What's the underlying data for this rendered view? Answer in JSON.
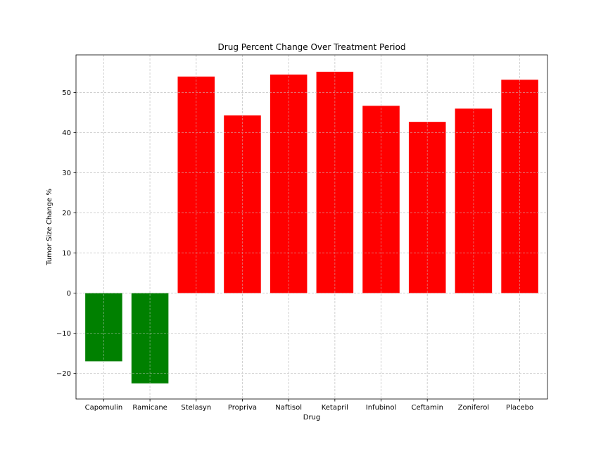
{
  "chart_data": {
    "type": "bar",
    "title": "Drug Percent Change Over Treatment Period",
    "xlabel": "Drug",
    "ylabel": "Tumor Size Change %",
    "categories": [
      "Capomulin",
      "Ramicane",
      "Stelasyn",
      "Propriva",
      "Naftisol",
      "Ketapril",
      "Infubinol",
      "Ceftamin",
      "Zoniferol",
      "Placebo"
    ],
    "values": [
      -17.0,
      -22.5,
      54.0,
      44.3,
      54.5,
      55.2,
      46.7,
      42.7,
      46.0,
      53.2
    ],
    "ylim": [
      -26.4,
      59.4
    ],
    "yticks": [
      -20,
      -10,
      0,
      10,
      20,
      30,
      40,
      50
    ],
    "ytick_labels": [
      "−20",
      "−10",
      "0",
      "10",
      "20",
      "30",
      "40",
      "50"
    ],
    "grid": true,
    "colors": {
      "negative": "#008000",
      "positive": "#ff0000",
      "grid": "#cccccc"
    }
  }
}
